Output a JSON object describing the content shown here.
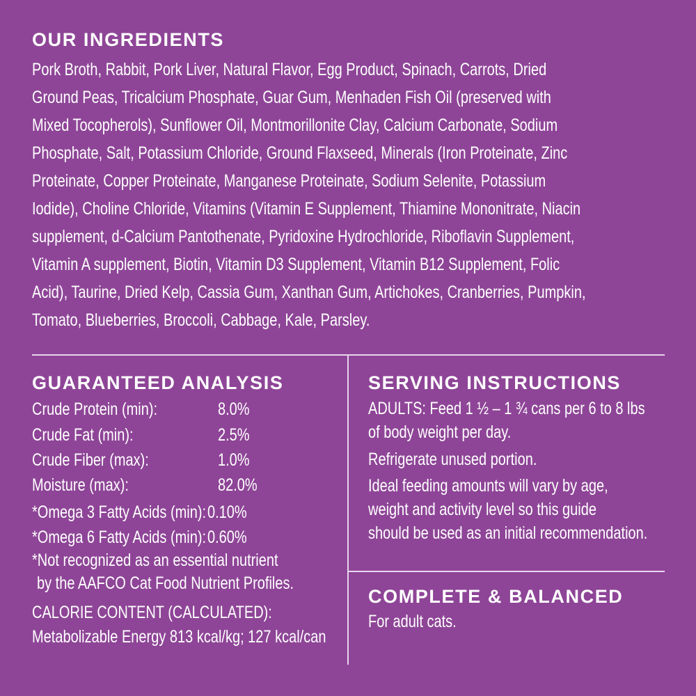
{
  "ingredients": {
    "title": "OUR INGREDIENTS",
    "lines": [
      "Pork Broth, Rabbit, Pork Liver, Natural Flavor, Egg Product, Spinach, Carrots, Dried",
      "Ground Peas, Tricalcium Phosphate, Guar Gum, Menhaden Fish Oil (preserved with",
      "Mixed Tocopherols), Sunflower Oil, Montmorillonite Clay, Calcium Carbonate, Sodium",
      "Phosphate, Salt, Potassium Chloride, Ground Flaxseed, Minerals (Iron Proteinate, Zinc",
      "Proteinate, Copper Proteinate, Manganese Proteinate, Sodium Selenite, Potassium",
      "Iodide), Choline Chloride, Vitamins (Vitamin E Supplement, Thiamine Mononitrate, Niacin",
      "supplement, d-Calcium Pantothenate, Pyridoxine Hydrochloride, Riboflavin Supplement,",
      "Vitamin A supplement, Biotin, Vitamin D3 Supplement, Vitamin B12 Supplement, Folic",
      "Acid), Taurine, Dried Kelp, Cassia Gum, Xanthan Gum, Artichokes, Cranberries, Pumpkin,",
      "Tomato, Blueberries, Broccoli, Cabbage, Kale, Parsley."
    ]
  },
  "analysis": {
    "title": "GUARANTEED ANALYSIS",
    "rows": [
      {
        "label": "Crude Protein (min):",
        "value": "8.0%"
      },
      {
        "label": "Crude Fat (min):",
        "value": "2.5%"
      },
      {
        "label": "Crude Fiber (max):",
        "value": "1.0%"
      },
      {
        "label": "Moisture (max):",
        "value": "82.0%"
      },
      {
        "label": "*Omega 3 Fatty Acids (min):",
        "value": "0.10%"
      },
      {
        "label": "*Omega 6 Fatty Acids (min):",
        "value": "0.60%"
      }
    ],
    "footnote": [
      "*Not recognized as an essential nutrient",
      "by the AAFCO Cat Food Nutrient Profiles."
    ],
    "calorie": [
      "CALORIE CONTENT (CALCULATED):",
      "Metabolizable Energy 813 kcal/kg; 127 kcal/can"
    ]
  },
  "serving": {
    "title": "SERVING INSTRUCTIONS",
    "lines": [
      "ADULTS: Feed 1 ½ – 1 ¾ cans per 6 to 8 lbs",
      "of body weight per day.",
      "Refrigerate unused portion.",
      "Ideal feeding amounts will vary by age,",
      "weight and activity level so this guide",
      "should be used as an initial recommendation."
    ]
  },
  "complete": {
    "title": "COMPLETE & BALANCED",
    "text": "For adult cats."
  },
  "colors": {
    "background": "#8e4597",
    "text": "#ffffff"
  }
}
